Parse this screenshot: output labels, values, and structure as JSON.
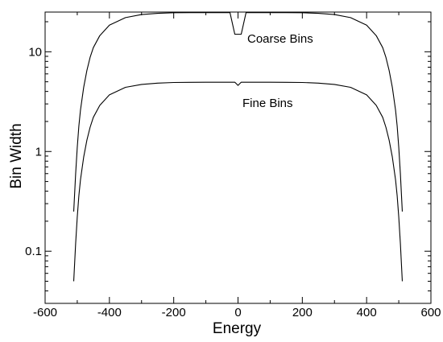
{
  "chart_data": {
    "type": "line",
    "xlabel": "Energy",
    "ylabel": "Bin Width",
    "xlim": [
      -600,
      600
    ],
    "ylim": [
      0.03,
      25
    ],
    "yscale": "log",
    "x_ticks": [
      -600,
      -400,
      -200,
      0,
      200,
      400,
      600
    ],
    "x_tick_labels": [
      "-600",
      "-400",
      "-200",
      "0",
      "200",
      "400",
      "600"
    ],
    "y_ticks": [
      0.1,
      1,
      10
    ],
    "y_tick_labels": [
      "0.1",
      "1",
      "10"
    ],
    "grid": false,
    "legend": "none",
    "annotations": [
      {
        "text": "Coarse Bins",
        "series": "Coarse Bins"
      },
      {
        "text": "Fine Bins",
        "series": "Fine Bins"
      }
    ],
    "series": [
      {
        "name": "Coarse Bins",
        "x": [
          -511,
          -505,
          -500,
          -495,
          -490,
          -480,
          -470,
          -460,
          -450,
          -430,
          -400,
          -350,
          -300,
          -250,
          -200,
          -150,
          -100,
          -50,
          -25,
          -10,
          0,
          10,
          25,
          50,
          100,
          150,
          200,
          250,
          300,
          350,
          400,
          430,
          450,
          460,
          470,
          480,
          490,
          495,
          500,
          505,
          511
        ],
        "y": [
          0.25,
          0.6,
          1.1,
          1.8,
          2.6,
          4.4,
          6.5,
          8.8,
          11,
          14.5,
          18.5,
          22,
          23.6,
          24.3,
          24.6,
          24.7,
          24.7,
          24.7,
          24.7,
          15,
          15,
          15,
          24.7,
          24.7,
          24.7,
          24.7,
          24.6,
          24.3,
          23.6,
          22,
          18.5,
          14.5,
          11,
          8.8,
          6.5,
          4.4,
          2.6,
          1.8,
          1.1,
          0.6,
          0.25
        ]
      },
      {
        "name": "Fine Bins",
        "x": [
          -511,
          -505,
          -500,
          -495,
          -490,
          -480,
          -470,
          -460,
          -450,
          -430,
          -400,
          -350,
          -300,
          -250,
          -200,
          -150,
          -100,
          -50,
          -10,
          0,
          10,
          50,
          100,
          150,
          200,
          250,
          300,
          350,
          400,
          430,
          450,
          460,
          470,
          480,
          490,
          495,
          500,
          505,
          511
        ],
        "y": [
          0.05,
          0.12,
          0.22,
          0.36,
          0.52,
          0.88,
          1.3,
          1.75,
          2.2,
          2.9,
          3.7,
          4.4,
          4.7,
          4.85,
          4.92,
          4.94,
          4.95,
          4.95,
          4.95,
          4.6,
          4.95,
          4.95,
          4.95,
          4.94,
          4.92,
          4.85,
          4.7,
          4.4,
          3.7,
          2.9,
          2.2,
          1.75,
          1.3,
          0.88,
          0.52,
          0.36,
          0.22,
          0.12,
          0.05
        ]
      }
    ]
  }
}
